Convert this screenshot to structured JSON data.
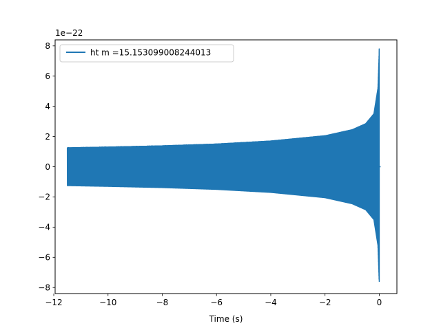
{
  "chart_data": {
    "type": "line",
    "title": "",
    "xlabel": "Time (s)",
    "ylabel": "",
    "y_offset_label": "1e−22",
    "xlim": [
      -11.95,
      0.65
    ],
    "ylim": [
      -8.4,
      8.4
    ],
    "xticks": [
      -12,
      -10,
      -8,
      -6,
      -4,
      -2,
      0
    ],
    "xtick_labels": [
      "−12",
      "−10",
      "−8",
      "−6",
      "−4",
      "−2",
      "0"
    ],
    "yticks": [
      -8,
      -6,
      -4,
      -2,
      0,
      2,
      4,
      6,
      8
    ],
    "ytick_labels": [
      "−8",
      "−6",
      "−4",
      "−2",
      "0",
      "2",
      "4",
      "6",
      "8"
    ],
    "grid": false,
    "legend": {
      "location": "upper left"
    },
    "series": [
      {
        "name": "ht m =15.153099008244013",
        "color": "#1f77b4",
        "signal": "chirp",
        "t_start": -11.5,
        "t_merger": 0.0,
        "t_end": 0.05,
        "initial_amplitude": 1.25,
        "peak_amplitude_positive": 7.8,
        "peak_amplitude_negative": -7.6,
        "envelope_samples": {
          "t": [
            -11.5,
            -10,
            -8,
            -6,
            -4,
            -2,
            -1,
            -0.5,
            -0.2,
            -0.05,
            0.0
          ],
          "amplitude": [
            1.25,
            1.3,
            1.38,
            1.5,
            1.7,
            2.05,
            2.45,
            2.85,
            3.5,
            5.2,
            7.8
          ]
        }
      }
    ]
  }
}
